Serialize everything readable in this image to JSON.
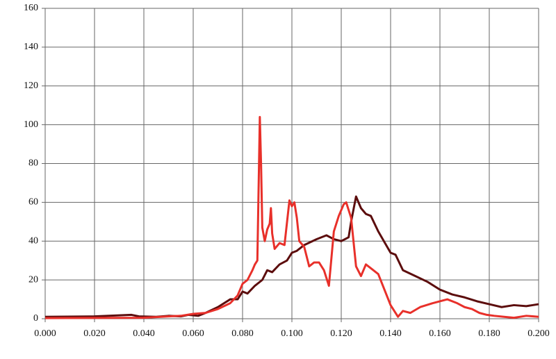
{
  "chart_data": {
    "type": "line",
    "xlim": [
      0,
      0.2
    ],
    "xticks": [
      {
        "value": 0,
        "label": "0.000"
      },
      {
        "value": 0.02,
        "label": "0.020"
      },
      {
        "value": 0.04,
        "label": "0.040"
      },
      {
        "value": 0.06,
        "label": "0.060"
      },
      {
        "value": 0.08,
        "label": "0.080"
      },
      {
        "value": 0.1,
        "label": "0.100"
      },
      {
        "value": 0.12,
        "label": "0.120"
      },
      {
        "value": 0.14,
        "label": "0.140"
      },
      {
        "value": 0.16,
        "label": "0.160"
      },
      {
        "value": 0.18,
        "label": "0.180"
      },
      {
        "value": 0.2,
        "label": "0.200"
      }
    ],
    "ylim": [
      0,
      160
    ],
    "yticks": [
      0,
      20,
      40,
      60,
      80,
      100,
      120,
      140,
      160
    ],
    "grid": true,
    "series": [
      {
        "color": "#5c0d0d",
        "x": [
          0,
          0.02,
          0.035,
          0.038,
          0.045,
          0.05,
          0.055,
          0.058,
          0.062,
          0.065,
          0.07,
          0.075,
          0.078,
          0.08,
          0.082,
          0.085,
          0.088,
          0.09,
          0.092,
          0.095,
          0.098,
          0.1,
          0.102,
          0.105,
          0.11,
          0.114,
          0.117,
          0.12,
          0.123,
          0.124,
          0.126,
          0.128,
          0.13,
          0.132,
          0.135,
          0.14,
          0.142,
          0.145,
          0.15,
          0.155,
          0.16,
          0.165,
          0.17,
          0.175,
          0.18,
          0.185,
          0.19,
          0.195,
          0.2
        ],
        "values": [
          1,
          1.2,
          2,
          1.2,
          1,
          1.5,
          1.2,
          2,
          1.5,
          3,
          6,
          10,
          10,
          14,
          13,
          17,
          20,
          25,
          24,
          28,
          30,
          34,
          35,
          38,
          41,
          43,
          41,
          40,
          42,
          50,
          63,
          57,
          54,
          53,
          45,
          34,
          33,
          25,
          22,
          19,
          15,
          12.5,
          11,
          9,
          7.5,
          6,
          7,
          6.5,
          7.5
        ]
      },
      {
        "color": "#e8302a",
        "x": [
          0,
          0.04,
          0.05,
          0.055,
          0.06,
          0.065,
          0.07,
          0.075,
          0.078,
          0.08,
          0.082,
          0.084,
          0.085,
          0.086,
          0.087,
          0.0875,
          0.088,
          0.089,
          0.09,
          0.091,
          0.0915,
          0.092,
          0.093,
          0.095,
          0.097,
          0.099,
          0.1,
          0.101,
          0.102,
          0.103,
          0.105,
          0.107,
          0.109,
          0.111,
          0.113,
          0.115,
          0.117,
          0.119,
          0.121,
          0.122,
          0.124,
          0.126,
          0.128,
          0.13,
          0.132,
          0.135,
          0.14,
          0.143,
          0.145,
          0.148,
          0.152,
          0.157,
          0.163,
          0.167,
          0.17,
          0.173,
          0.176,
          0.179,
          0.182,
          0.186,
          0.19,
          0.195,
          0.2
        ],
        "values": [
          0.3,
          0.5,
          1.2,
          1.5,
          2.5,
          3,
          5,
          8,
          12,
          18,
          20,
          25,
          28,
          30,
          104,
          80,
          47,
          40,
          46,
          49,
          57,
          44,
          36,
          39,
          38,
          61,
          58,
          60,
          52,
          40,
          37,
          27,
          29,
          29,
          25,
          17,
          45,
          53,
          59,
          60,
          52,
          27,
          22,
          28,
          26,
          23,
          7,
          1,
          4,
          3,
          6,
          8,
          10,
          8,
          6,
          5,
          3,
          2,
          1.5,
          1,
          0.5,
          1.5,
          1
        ]
      }
    ]
  }
}
